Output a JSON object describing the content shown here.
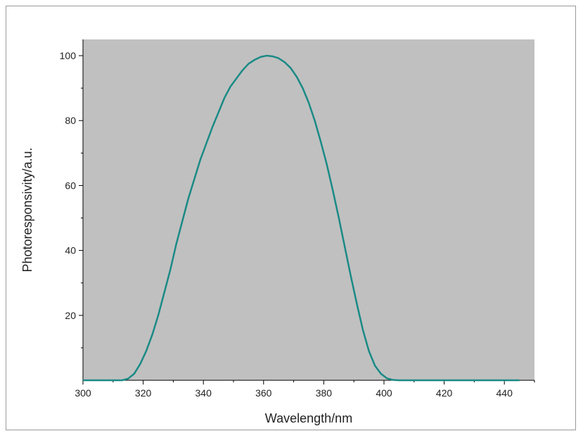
{
  "chart_data": {
    "type": "line",
    "title": "",
    "xlabel": "Wavelength/nm",
    "ylabel": "Photoresponsivity/a.u.",
    "xlim": [
      300,
      450
    ],
    "ylim": [
      0,
      105
    ],
    "x_ticks": [
      300,
      320,
      340,
      360,
      380,
      400,
      420,
      440
    ],
    "y_ticks": [
      20,
      40,
      60,
      80,
      100
    ],
    "grid": false,
    "legend": "none",
    "plot_background": "#c0c0c0",
    "series": [
      {
        "color": "#1a8a86",
        "points": [
          [
            300,
            0
          ],
          [
            305,
            0
          ],
          [
            310,
            0
          ],
          [
            313,
            0
          ],
          [
            315,
            0.5
          ],
          [
            317,
            2
          ],
          [
            319,
            5
          ],
          [
            321,
            9
          ],
          [
            323,
            14
          ],
          [
            325,
            20
          ],
          [
            327,
            27
          ],
          [
            329,
            34
          ],
          [
            331,
            42
          ],
          [
            333,
            49
          ],
          [
            335,
            56
          ],
          [
            337,
            62
          ],
          [
            339,
            68
          ],
          [
            341,
            73
          ],
          [
            343,
            78
          ],
          [
            345,
            82.5
          ],
          [
            347,
            87
          ],
          [
            349,
            90.5
          ],
          [
            351,
            93
          ],
          [
            353,
            95.5
          ],
          [
            355,
            97.5
          ],
          [
            357,
            98.7
          ],
          [
            359,
            99.6
          ],
          [
            361,
            100
          ],
          [
            363,
            99.8
          ],
          [
            365,
            99.2
          ],
          [
            367,
            98
          ],
          [
            369,
            96.2
          ],
          [
            371,
            93.5
          ],
          [
            373,
            90
          ],
          [
            375,
            85.5
          ],
          [
            377,
            80
          ],
          [
            379,
            73.5
          ],
          [
            381,
            66.5
          ],
          [
            383,
            58.5
          ],
          [
            385,
            50
          ],
          [
            387,
            41
          ],
          [
            389,
            32
          ],
          [
            391,
            23.5
          ],
          [
            393,
            15.5
          ],
          [
            395,
            9
          ],
          [
            397,
            4.5
          ],
          [
            399,
            2
          ],
          [
            401,
            0.6
          ],
          [
            403,
            0.1
          ],
          [
            405,
            0
          ],
          [
            410,
            0
          ],
          [
            420,
            0
          ],
          [
            430,
            0
          ],
          [
            440,
            0
          ],
          [
            445,
            0
          ]
        ]
      }
    ]
  }
}
